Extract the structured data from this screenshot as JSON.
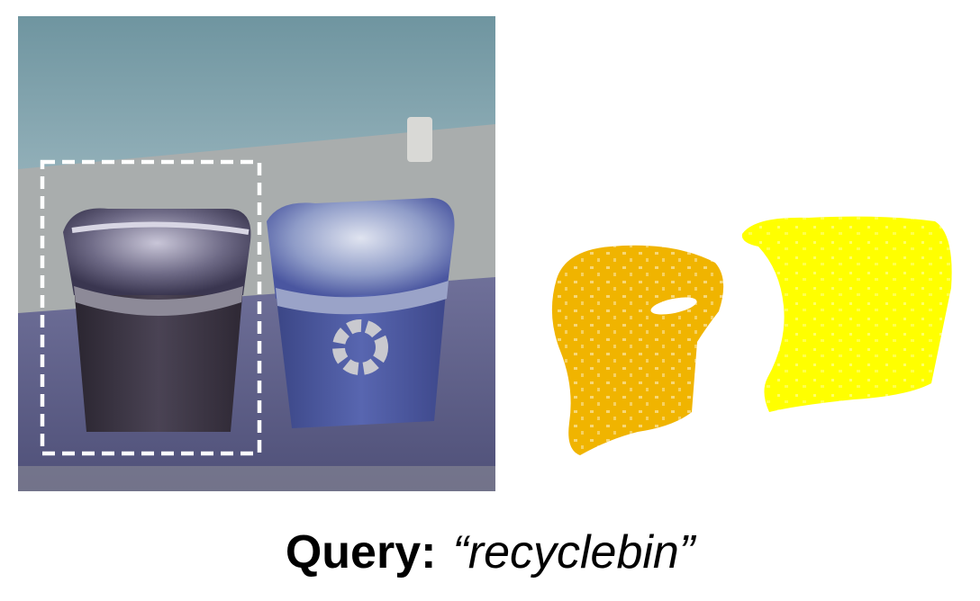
{
  "caption": {
    "label": "Query:",
    "query_text": "“recyclebin”"
  },
  "colors": {
    "wall": "#86a6b0",
    "floor": "#5b5d86",
    "left_bin": "#3a3444",
    "right_bin": "#4d5ba0",
    "highlight_box": "#ffffff",
    "cloud_left": "#f0b400",
    "cloud_right": "#ffff00"
  }
}
